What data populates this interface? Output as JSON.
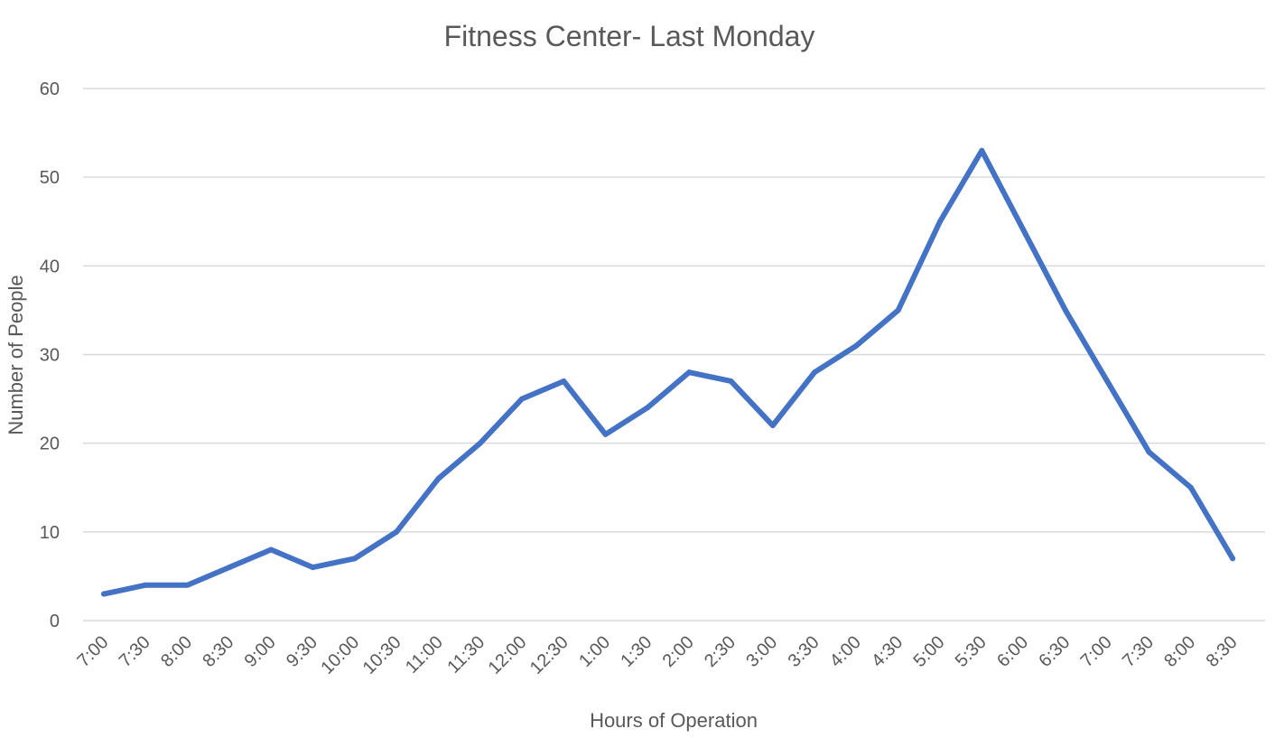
{
  "chart_data": {
    "type": "line",
    "title": "Fitness Center- Last Monday",
    "xlabel": "Hours of Operation",
    "ylabel": "Number of People",
    "ylim": [
      0,
      60
    ],
    "yticks": [
      "0",
      "10",
      "20",
      "30",
      "40",
      "50",
      "60"
    ],
    "grid": true,
    "legend": "none",
    "categories": [
      "7:00",
      "7:30",
      "8:00",
      "8:30",
      "9:00",
      "9:30",
      "10:00",
      "10:30",
      "11:00",
      "11:30",
      "12:00",
      "12:30",
      "1:00",
      "1:30",
      "2:00",
      "2:30",
      "3:00",
      "3:30",
      "4:00",
      "4:30",
      "5:00",
      "5:30",
      "6:00",
      "6:30",
      "7:00",
      "7:30",
      "8:00",
      "8:30"
    ],
    "series": [
      {
        "color": "#4472c4",
        "values": [
          3,
          4,
          4,
          6,
          8,
          6,
          7,
          10,
          16,
          20,
          25,
          27,
          21,
          24,
          28,
          27,
          22,
          28,
          31,
          35,
          45,
          53,
          44,
          35,
          27,
          19,
          15,
          7
        ]
      }
    ]
  }
}
